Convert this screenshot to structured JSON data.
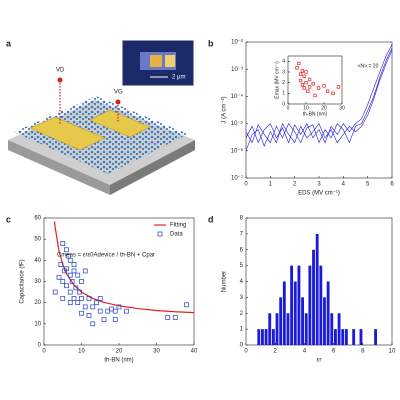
{
  "illustration": {
    "label": "a",
    "drain": "VD",
    "gate": "VG",
    "scale": "2 μm"
  },
  "chart_data": [
    {
      "type": "line",
      "panel_label": "b",
      "log_y": true,
      "xlabel": "EDS (MV cm⁻¹)",
      "ylabel": "J (A cm⁻²)",
      "xlim": [
        0,
        6
      ],
      "xticks": [
        0,
        1,
        2,
        3,
        4,
        5,
        6
      ],
      "ylim": [
        1e-07,
        0.01
      ],
      "yticks": [
        {
          "value": 1e-07,
          "label": "10⁻⁷"
        },
        {
          "value": 1e-06,
          "label": "10⁻⁶"
        },
        {
          "value": 1e-05,
          "label": "10⁻⁵"
        },
        {
          "value": 0.0001,
          "label": "10⁻⁴"
        },
        {
          "value": 0.001,
          "label": "10⁻³"
        },
        {
          "value": 0.01,
          "label": "10⁻²"
        }
      ],
      "x": [
        0,
        0.25,
        0.5,
        0.75,
        1,
        1.25,
        1.5,
        1.75,
        2,
        2.25,
        2.5,
        2.75,
        3,
        3.25,
        3.5,
        3.75,
        4,
        4.25,
        4.5,
        4.75,
        5,
        5.25,
        5.5,
        5.75,
        6
      ],
      "series": [
        {
          "color": "#1a1ad8",
          "values": [
            3e-06,
            8e-06,
            2e-06,
            6e-06,
            1e-05,
            3e-06,
            7e-06,
            2e-06,
            9e-06,
            4e-06,
            1e-05,
            3e-06,
            6e-06,
            2e-06,
            8e-06,
            4e-06,
            1e-05,
            5e-06,
            1e-05,
            1.5e-05,
            5e-05,
            0.0002,
            0.0008,
            0.003,
            0.008
          ]
        },
        {
          "color": "#1a1ad8",
          "values": [
            5e-06,
            2e-06,
            9e-06,
            4e-06,
            2e-06,
            8e-06,
            3e-06,
            1e-05,
            5e-06,
            2e-06,
            7e-06,
            9e-06,
            2e-06,
            6e-06,
            3e-06,
            1e-05,
            6e-06,
            2e-06,
            8e-06,
            1e-05,
            3e-05,
            0.0001,
            0.0005,
            0.002,
            0.006
          ]
        },
        {
          "color": "#1a1ad8",
          "values": [
            1e-06,
            4e-06,
            6e-06,
            1.5e-06,
            5e-06,
            2e-06,
            1e-05,
            4e-06,
            2e-06,
            8e-06,
            3e-06,
            5e-06,
            1e-05,
            3e-06,
            6e-06,
            2e-06,
            4e-06,
            8e-06,
            5e-06,
            8e-06,
            2e-05,
            8e-05,
            0.0004,
            0.0015,
            0.005
          ]
        }
      ],
      "inset": {
        "type": "scatter",
        "xlabel": "th-BN (nm)",
        "ylabel": "Emax (MV cm⁻¹)",
        "annotation": "<N> = 20",
        "xlim": [
          0,
          30
        ],
        "xticks": [
          0,
          10,
          20,
          30
        ],
        "ylim": [
          0,
          4.5
        ],
        "yticks": [
          0,
          1,
          2,
          3,
          4
        ],
        "color": "#e02020",
        "x": [
          5,
          6,
          7,
          7,
          8,
          8,
          9,
          9,
          10,
          10,
          11,
          12,
          12,
          14,
          15,
          17,
          20,
          22,
          25,
          28
        ],
        "values": [
          3.4,
          3.8,
          2.8,
          2.2,
          3.1,
          1.8,
          2.6,
          1.5,
          2.0,
          3.0,
          1.2,
          2.3,
          1.6,
          1.9,
          0.8,
          1.5,
          1.7,
          1.2,
          1.0,
          1.6
        ]
      }
    },
    {
      "type": "scatter",
      "panel_label": "c",
      "xlabel": "th-BN (nm)",
      "ylabel": "Capacitance (fF)",
      "annotation": "Cmeas = εrε0Adevice / th-BN + Cpar",
      "xlim": [
        0,
        40
      ],
      "xticks": [
        0,
        10,
        20,
        30,
        40
      ],
      "ylim": [
        0,
        60
      ],
      "yticks": [
        0,
        10,
        20,
        30,
        40,
        50,
        60
      ],
      "legend": "upper right",
      "series": [
        {
          "name": "Fitting",
          "kind": "line",
          "color": "#e02020",
          "x": [
            2.8,
            3,
            4,
            5,
            6,
            8,
            10,
            13,
            16,
            20,
            25,
            30,
            35,
            40
          ],
          "values": [
            58.4,
            55.3,
            44.5,
            38,
            33.7,
            28.3,
            25,
            22,
            20.1,
            18.5,
            17.2,
            16.3,
            15.7,
            15.3
          ]
        },
        {
          "name": "Data",
          "kind": "marker",
          "color": "#1f3fbf",
          "x": [
            3,
            4,
            4.5,
            5,
            5,
            5.5,
            6,
            6,
            6,
            6.5,
            7,
            7,
            7,
            7.5,
            8,
            8,
            8,
            8.5,
            9,
            9,
            9.5,
            10,
            10,
            10,
            11,
            11,
            12,
            12,
            13,
            13,
            14,
            15,
            15,
            16,
            17,
            18,
            19,
            19,
            20,
            22,
            33,
            35,
            38,
            5,
            7
          ],
          "values": [
            25,
            32,
            38,
            48,
            30,
            35,
            45,
            36,
            28,
            42,
            33,
            25,
            40,
            30,
            35,
            22,
            38,
            27,
            33,
            20,
            25,
            30,
            15,
            22,
            18,
            35,
            22,
            14,
            18,
            10,
            20,
            16,
            22,
            12,
            16,
            17,
            12,
            16,
            18,
            16,
            13,
            13,
            19,
            22,
            20
          ]
        }
      ]
    },
    {
      "type": "histogram",
      "panel_label": "d",
      "xlabel": "εr",
      "ylabel": "Number",
      "color": "#1a1ad8",
      "xlim": [
        0,
        10
      ],
      "xticks": [
        0,
        2,
        4,
        6,
        8,
        10
      ],
      "ylim": [
        0,
        8
      ],
      "yticks": [
        0,
        1,
        2,
        3,
        4,
        5,
        6,
        7,
        8
      ],
      "bins": [
        0.5,
        0.75,
        1,
        1.25,
        1.5,
        1.75,
        2,
        2.25,
        2.5,
        2.75,
        3,
        3.25,
        3.5,
        3.75,
        4,
        4.25,
        4.5,
        4.75,
        5,
        5.25,
        5.5,
        5.75,
        6,
        6.25,
        6.5,
        6.75,
        7,
        7.25,
        7.5,
        7.75,
        8,
        8.25,
        8.5,
        8.75,
        9
      ],
      "values": [
        0,
        1,
        1,
        1,
        2,
        1,
        2,
        3,
        4,
        2,
        5,
        4,
        5,
        3,
        2,
        5,
        6,
        7,
        5,
        3,
        4,
        2,
        1,
        2,
        1,
        1,
        0,
        1,
        0,
        1,
        0,
        0,
        0,
        1
      ]
    }
  ]
}
